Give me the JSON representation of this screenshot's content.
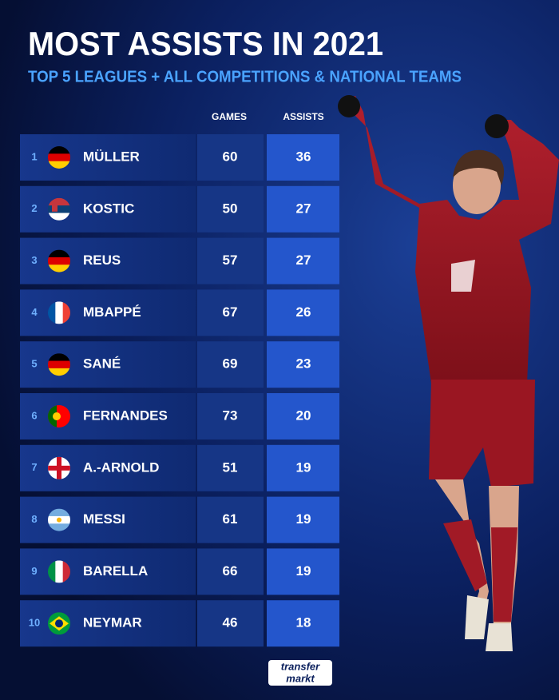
{
  "title": "MOST ASSISTS IN 2021",
  "subtitle": "TOP 5 LEAGUES + ALL COMPETITIONS & NATIONAL TEAMS",
  "columns": [
    "GAMES",
    "ASSISTS"
  ],
  "rows": [
    {
      "rank": 1,
      "name": "MÜLLER",
      "games": 60,
      "assists": 36
    },
    {
      "rank": 2,
      "name": "KOSTIC",
      "games": 50,
      "assists": 27
    },
    {
      "rank": 3,
      "name": "REUS",
      "games": 57,
      "assists": 27
    },
    {
      "rank": 4,
      "name": "MBAPPÉ",
      "games": 67,
      "assists": 26
    },
    {
      "rank": 5,
      "name": "SANÉ",
      "games": 69,
      "assists": 23
    },
    {
      "rank": 6,
      "name": "FERNANDES",
      "games": 73,
      "assists": 20
    },
    {
      "rank": 7,
      "name": "A.-ARNOLD",
      "games": 51,
      "assists": 19
    },
    {
      "rank": 8,
      "name": "MESSI",
      "games": 61,
      "assists": 19
    },
    {
      "rank": 9,
      "name": "BARELLA",
      "games": 66,
      "assists": 19
    },
    {
      "rank": 10,
      "name": "NEYMAR",
      "games": 46,
      "assists": 18
    }
  ],
  "logo": [
    "transfer",
    "markt"
  ]
}
